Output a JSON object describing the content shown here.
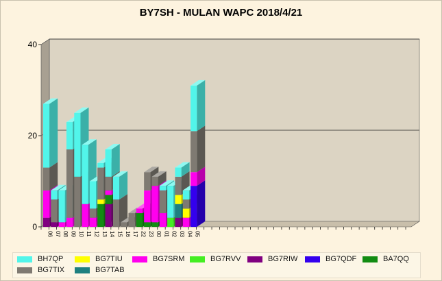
{
  "chart_data": {
    "type": "bar",
    "stacked": true,
    "title": "BY7SH - MULAN WAPC 2018/4/21",
    "xlabel": "",
    "ylabel": "",
    "ylim": [
      0,
      40
    ],
    "yticks": [
      "0",
      "20",
      "40"
    ],
    "grid": true,
    "legend_position": "bottom",
    "categories": [
      "06",
      "07",
      "08",
      "09",
      "10",
      "11",
      "12",
      "13",
      "14",
      "15",
      "16",
      "17",
      "22",
      "23",
      "00",
      "01",
      "02",
      "03",
      "04",
      "05"
    ],
    "series": [
      {
        "name": "BG7RIW",
        "color": "#800080",
        "values": [
          2,
          1,
          0,
          0,
          0,
          0,
          0,
          0,
          5,
          0,
          0,
          0,
          0,
          0,
          0,
          0,
          0,
          2,
          0,
          0
        ]
      },
      {
        "name": "BG7QDF",
        "color": "#3300ee",
        "values": [
          0,
          0,
          0,
          0,
          0,
          0,
          0,
          0,
          0,
          0,
          0,
          0,
          0,
          0,
          0,
          0,
          0,
          0,
          0,
          9
        ]
      },
      {
        "name": "BA7QQ",
        "color": "#128c12",
        "values": [
          0,
          0,
          0,
          0,
          0,
          0,
          0,
          5,
          2,
          0,
          0,
          0,
          3,
          1,
          1,
          0,
          0,
          0,
          0,
          0
        ]
      },
      {
        "name": "BG7RVV",
        "color": "#44ee22",
        "values": [
          0,
          0,
          0,
          0,
          0,
          0,
          0,
          0,
          0,
          0,
          0,
          0,
          0,
          0,
          0,
          0,
          2,
          0,
          0,
          0
        ]
      },
      {
        "name": "BG7TAB",
        "color": "#1e8080",
        "values": [
          0,
          0,
          0,
          0,
          0,
          0,
          0,
          0,
          0,
          0,
          0,
          0,
          0,
          0,
          0,
          0,
          0,
          3,
          0,
          0
        ]
      },
      {
        "name": "BG7SRM",
        "color": "#ff00ee",
        "values": [
          6,
          0,
          1,
          2,
          0,
          5,
          2,
          0,
          1,
          0,
          0,
          0,
          1,
          7,
          8,
          3,
          0,
          0,
          2,
          3
        ]
      },
      {
        "name": "BG7TIU",
        "color": "#ffff00",
        "values": [
          0,
          0,
          0,
          0,
          0,
          0,
          0,
          1,
          0,
          0,
          0,
          0,
          0,
          0,
          0,
          0,
          0,
          2,
          2,
          0
        ]
      },
      {
        "name": "BG7TIX",
        "color": "#7f7a72",
        "values": [
          5,
          5,
          0,
          15,
          11,
          0,
          2,
          7,
          3,
          6,
          1,
          3,
          0,
          4,
          2,
          5,
          0,
          4,
          2,
          9
        ]
      },
      {
        "name": "BH7QP",
        "color": "#52f5ea",
        "values": [
          14,
          2,
          7,
          6,
          14,
          13,
          6,
          1,
          6,
          5,
          0,
          0,
          0,
          0,
          0,
          1,
          7,
          2,
          2,
          10
        ]
      }
    ],
    "legend_order": [
      "BH7QP",
      "BG7TIU",
      "BG7SRM",
      "BG7RVV",
      "BG7RIW",
      "BG7QDF",
      "BA7QQ",
      "BG7TIX",
      "BG7TAB"
    ],
    "plot_colors": {
      "wall": "#dcd4c3",
      "floor": "#c9bfab",
      "side": "#a8a092"
    }
  }
}
